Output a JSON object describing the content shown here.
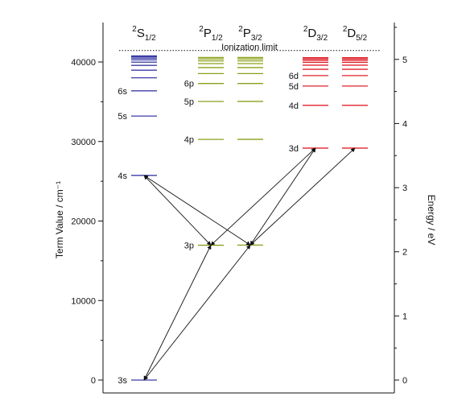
{
  "diagram": {
    "ionization_label": "Ionization limit",
    "ionization_value": 41449,
    "left_axis": {
      "title": "Term Value / cm⁻¹",
      "min": 0,
      "max": 46000,
      "ticks": [
        0,
        10000,
        20000,
        30000,
        40000
      ],
      "tick_labels": [
        "0",
        "10000",
        "20000",
        "30000",
        "40000"
      ]
    },
    "right_axis": {
      "title": "Energy / eV",
      "min": 0,
      "max": 5.7,
      "ticks": [
        0,
        1,
        2,
        3,
        4,
        5
      ],
      "tick_labels": [
        "0",
        "1",
        "2",
        "3",
        "4",
        "5"
      ]
    },
    "columns": [
      {
        "id": "S12",
        "base": "S",
        "sub": "1/2",
        "sup": "2",
        "color": "#3b3ba8",
        "levels": [
          {
            "label": "3s",
            "value": 0
          },
          {
            "label": "4s",
            "value": 25740
          },
          {
            "label": "5s",
            "value": 33201
          },
          {
            "label": "6s",
            "value": 36373
          },
          {
            "label": "",
            "value": 38012
          },
          {
            "label": "",
            "value": 38968
          },
          {
            "label": "",
            "value": 39574
          },
          {
            "label": "",
            "value": 39983
          },
          {
            "label": "",
            "value": 40272
          },
          {
            "label": "",
            "value": 40484
          },
          {
            "label": "",
            "value": 40644
          },
          {
            "label": "",
            "value": 40768
          }
        ]
      },
      {
        "id": "P12",
        "base": "P",
        "sub": "1/2",
        "sup": "2",
        "color": "#8aa01a",
        "levels": [
          {
            "label": "3p",
            "value": 16956
          },
          {
            "label": "4p",
            "value": 30267
          },
          {
            "label": "5p",
            "value": 35041
          },
          {
            "label": "6p",
            "value": 37297
          },
          {
            "label": "",
            "value": 38541
          },
          {
            "label": "",
            "value": 39299
          },
          {
            "label": "",
            "value": 39795
          },
          {
            "label": "",
            "value": 40137
          },
          {
            "label": "",
            "value": 40382
          },
          {
            "label": "",
            "value": 40564
          }
        ]
      },
      {
        "id": "P32",
        "base": "P",
        "sub": "3/2",
        "sup": "2",
        "color": "#8aa01a",
        "levels": [
          {
            "label": "",
            "value": 16973
          },
          {
            "label": "",
            "value": 30273
          },
          {
            "label": "",
            "value": 35043
          },
          {
            "label": "",
            "value": 37298
          },
          {
            "label": "",
            "value": 38541
          },
          {
            "label": "",
            "value": 39299
          },
          {
            "label": "",
            "value": 39795
          },
          {
            "label": "",
            "value": 40137
          },
          {
            "label": "",
            "value": 40382
          },
          {
            "label": "",
            "value": 40564
          }
        ]
      },
      {
        "id": "D32",
        "base": "D",
        "sub": "3/2",
        "sup": "2",
        "color": "#e0202a",
        "levels": [
          {
            "label": "3d",
            "value": 29173
          },
          {
            "label": "4d",
            "value": 34549
          },
          {
            "label": "5d",
            "value": 36972
          },
          {
            "label": "6d",
            "value": 38289
          },
          {
            "label": "",
            "value": 39084
          },
          {
            "label": "",
            "value": 39600
          },
          {
            "label": "",
            "value": 39955
          },
          {
            "label": "",
            "value": 40210
          },
          {
            "label": "",
            "value": 40400
          },
          {
            "label": "",
            "value": 40545
          }
        ]
      },
      {
        "id": "D52",
        "base": "D",
        "sub": "5/2",
        "sup": "2",
        "color": "#e0202a",
        "levels": [
          {
            "label": "",
            "value": 29173
          },
          {
            "label": "",
            "value": 34549
          },
          {
            "label": "",
            "value": 36972
          },
          {
            "label": "",
            "value": 38289
          },
          {
            "label": "",
            "value": 39084
          },
          {
            "label": "",
            "value": 39600
          },
          {
            "label": "",
            "value": 39955
          },
          {
            "label": "",
            "value": 40210
          },
          {
            "label": "",
            "value": 40400
          },
          {
            "label": "",
            "value": 40545
          }
        ]
      }
    ],
    "transitions": [
      {
        "from_col": "S12",
        "from": 0,
        "to_col": "P12",
        "to": 16956
      },
      {
        "from_col": "S12",
        "from": 0,
        "to_col": "P32",
        "to": 16973
      },
      {
        "from_col": "S12",
        "from": 25740,
        "to_col": "P12",
        "to": 16956
      },
      {
        "from_col": "S12",
        "from": 25740,
        "to_col": "P32",
        "to": 16973
      },
      {
        "from_col": "P12",
        "from": 16956,
        "to_col": "D32",
        "to": 29173
      },
      {
        "from_col": "P32",
        "from": 16973,
        "to_col": "D32",
        "to": 29173
      },
      {
        "from_col": "P32",
        "from": 16973,
        "to_col": "D52",
        "to": 29173
      }
    ]
  }
}
